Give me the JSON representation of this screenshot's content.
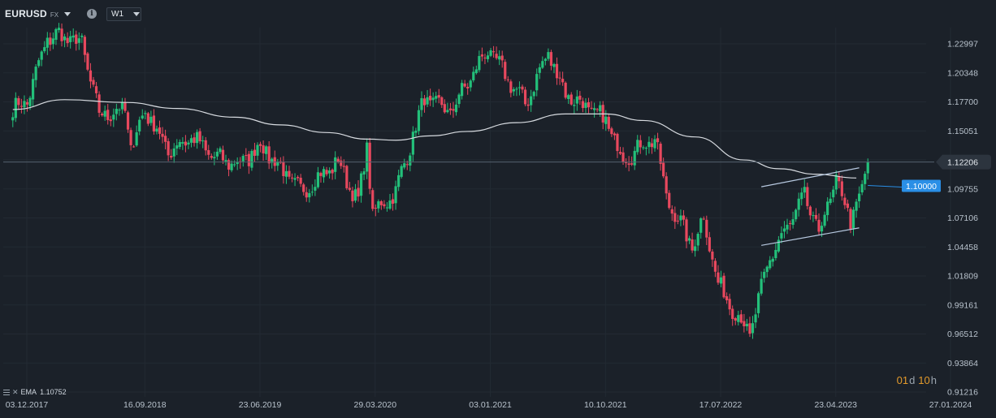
{
  "header": {
    "symbol": "EURUSD",
    "instrument_class": "FX",
    "info_icon": "info-icon",
    "timeframe": "W1"
  },
  "indicator": {
    "name": "EMA",
    "value": "1.10752"
  },
  "countdown": {
    "days": "01",
    "days_unit": "d",
    "hours": "10",
    "hours_unit": "h"
  },
  "colors": {
    "background": "#1b2129",
    "up": "#23c07a",
    "down": "#e8485e",
    "ema": "#d7dbe0",
    "channel": "#b7c9e0",
    "price_line": "#55626f",
    "marker": "#2a8fe6",
    "label_text": "#b8c2cc"
  },
  "chart_data": {
    "type": "candlestick",
    "symbol": "EURUSD",
    "timeframe": "W1",
    "y_ticks": [
      "1.22997",
      "1.20348",
      "1.17700",
      "1.15051",
      "1.12206",
      "1.09755",
      "1.07106",
      "1.04458",
      "1.01809",
      "0.99161",
      "0.96512",
      "0.93864",
      "0.91216"
    ],
    "x_ticks": [
      "03.12.2017",
      "16.09.2018",
      "23.06.2019",
      "29.03.2020",
      "03.01.2021",
      "10.10.2021",
      "17.07.2022",
      "23.04.2023",
      "27.01.2024"
    ],
    "ylim": [
      0.912,
      1.262
    ],
    "current_price": "1.12206",
    "order_level": "1.10000",
    "ema_period_label": "EMA",
    "ema_last": 1.10752,
    "channel": {
      "upper": [
        {
          "x": "2022-10-24",
          "y": 1.0995
        },
        {
          "x": "2023-06-19",
          "y": 1.1168
        }
      ],
      "lower": [
        {
          "x": "2022-10-24",
          "y": 1.046
        },
        {
          "x": "2023-06-19",
          "y": 1.062
        }
      ]
    },
    "ema_path": [
      {
        "x": "2017-10-30",
        "y": 1.17
      },
      {
        "x": "2018-03-05",
        "y": 1.179
      },
      {
        "x": "2018-07-30",
        "y": 1.1765
      },
      {
        "x": "2018-12-03",
        "y": 1.171
      },
      {
        "x": "2019-04-22",
        "y": 1.163
      },
      {
        "x": "2019-08-12",
        "y": 1.156
      },
      {
        "x": "2019-12-02",
        "y": 1.149
      },
      {
        "x": "2020-03-09",
        "y": 1.143
      },
      {
        "x": "2020-05-18",
        "y": 1.142
      },
      {
        "x": "2020-08-10",
        "y": 1.146
      },
      {
        "x": "2020-11-09",
        "y": 1.15
      },
      {
        "x": "2021-03-08",
        "y": 1.158
      },
      {
        "x": "2021-07-05",
        "y": 1.166
      },
      {
        "x": "2021-10-11",
        "y": 1.166
      },
      {
        "x": "2022-01-10",
        "y": 1.16
      },
      {
        "x": "2022-05-16",
        "y": 1.145
      },
      {
        "x": "2022-09-12",
        "y": 1.124
      },
      {
        "x": "2022-12-05",
        "y": 1.116
      },
      {
        "x": "2023-03-06",
        "y": 1.111
      },
      {
        "x": "2023-06-12",
        "y": 1.1075
      }
    ],
    "anchors": [
      {
        "x": "2017-10-30",
        "y": 1.17
      },
      {
        "x": "2017-12-04",
        "y": 1.178
      },
      {
        "x": "2018-01-22",
        "y": 1.235
      },
      {
        "x": "2018-02-19",
        "y": 1.238
      },
      {
        "x": "2018-04-16",
        "y": 1.23
      },
      {
        "x": "2018-05-28",
        "y": 1.165
      },
      {
        "x": "2018-07-30",
        "y": 1.17
      },
      {
        "x": "2018-08-13",
        "y": 1.135
      },
      {
        "x": "2018-09-17",
        "y": 1.17
      },
      {
        "x": "2018-11-12",
        "y": 1.132
      },
      {
        "x": "2019-01-07",
        "y": 1.145
      },
      {
        "x": "2019-03-04",
        "y": 1.126
      },
      {
        "x": "2019-05-06",
        "y": 1.12
      },
      {
        "x": "2019-06-24",
        "y": 1.138
      },
      {
        "x": "2019-09-30",
        "y": 1.095
      },
      {
        "x": "2019-12-30",
        "y": 1.122
      },
      {
        "x": "2020-02-17",
        "y": 1.085
      },
      {
        "x": "2020-03-09",
        "y": 1.137
      },
      {
        "x": "2020-03-23",
        "y": 1.075
      },
      {
        "x": "2020-05-18",
        "y": 1.095
      },
      {
        "x": "2020-07-27",
        "y": 1.18
      },
      {
        "x": "2020-09-28",
        "y": 1.168
      },
      {
        "x": "2020-12-28",
        "y": 1.225
      },
      {
        "x": "2021-03-29",
        "y": 1.175
      },
      {
        "x": "2021-05-24",
        "y": 1.222
      },
      {
        "x": "2021-07-05",
        "y": 1.185
      },
      {
        "x": "2021-10-11",
        "y": 1.16
      },
      {
        "x": "2021-11-22",
        "y": 1.125
      },
      {
        "x": "2022-02-07",
        "y": 1.145
      },
      {
        "x": "2022-03-07",
        "y": 1.09
      },
      {
        "x": "2022-05-09",
        "y": 1.045
      },
      {
        "x": "2022-06-06",
        "y": 1.072
      },
      {
        "x": "2022-07-11",
        "y": 1.01
      },
      {
        "x": "2022-09-26",
        "y": 0.965
      },
      {
        "x": "2022-11-14",
        "y": 1.035
      },
      {
        "x": "2023-02-06",
        "y": 1.09
      },
      {
        "x": "2023-03-13",
        "y": 1.058
      },
      {
        "x": "2023-04-24",
        "y": 1.105
      },
      {
        "x": "2023-05-29",
        "y": 1.07
      },
      {
        "x": "2023-06-26",
        "y": 1.095
      },
      {
        "x": "2023-07-10",
        "y": 1.122
      }
    ]
  }
}
